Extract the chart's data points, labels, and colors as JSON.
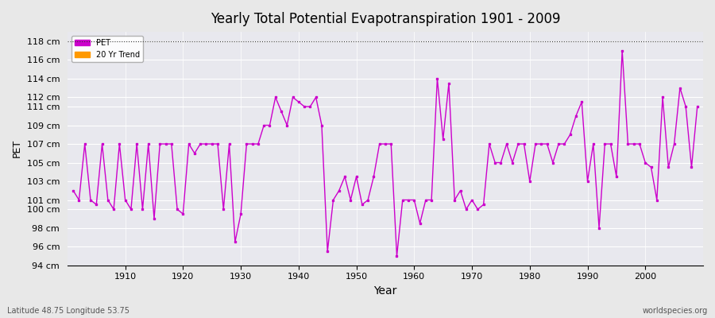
{
  "title": "Yearly Total Potential Evapotranspiration 1901 - 2009",
  "xlabel": "Year",
  "ylabel": "PET",
  "left_label": "Latitude 48.75 Longitude 53.75",
  "right_label": "worldspecies.org",
  "ylim": [
    94,
    119
  ],
  "xlim": [
    1900,
    2010
  ],
  "yticks": [
    94,
    96,
    98,
    100,
    101,
    103,
    105,
    107,
    109,
    111,
    112,
    114,
    116,
    118
  ],
  "ytick_labels": [
    "94 cm",
    "96 cm",
    "98 cm",
    "100 cm",
    "101 cm",
    "103 cm",
    "105 cm",
    "107 cm",
    "109 cm",
    "111 cm",
    "112 cm",
    "114 cm",
    "116 cm",
    "118 cm"
  ],
  "xticks": [
    1910,
    1920,
    1930,
    1940,
    1950,
    1960,
    1970,
    1980,
    1990,
    2000
  ],
  "pet_color": "#cc00cc",
  "trend_color": "#ff9900",
  "bg_color": "#e8e8e8",
  "plot_bg": "#e8e8ee",
  "grid_color": "#ffffff",
  "top_line_color": "#555555",
  "years": [
    1901,
    1902,
    1903,
    1904,
    1905,
    1906,
    1907,
    1908,
    1909,
    1910,
    1911,
    1912,
    1913,
    1914,
    1915,
    1916,
    1917,
    1918,
    1919,
    1920,
    1921,
    1922,
    1923,
    1924,
    1925,
    1926,
    1927,
    1928,
    1929,
    1930,
    1931,
    1932,
    1933,
    1934,
    1935,
    1936,
    1937,
    1938,
    1939,
    1940,
    1941,
    1942,
    1943,
    1944,
    1945,
    1946,
    1947,
    1948,
    1949,
    1950,
    1951,
    1952,
    1953,
    1954,
    1955,
    1956,
    1957,
    1958,
    1959,
    1960,
    1961,
    1962,
    1963,
    1964,
    1965,
    1966,
    1967,
    1968,
    1969,
    1970,
    1971,
    1972,
    1973,
    1974,
    1975,
    1976,
    1977,
    1978,
    1979,
    1980,
    1981,
    1982,
    1983,
    1984,
    1985,
    1986,
    1987,
    1988,
    1989,
    1990,
    1991,
    1992,
    1993,
    1994,
    1995,
    1996,
    1997,
    1998,
    1999,
    2000,
    2001,
    2002,
    2003,
    2004,
    2005,
    2006,
    2007,
    2008,
    2009
  ],
  "pet_values": [
    102,
    101,
    107,
    101,
    100.5,
    107,
    101,
    100,
    107,
    101,
    100,
    107,
    100,
    107,
    99,
    107,
    107,
    107,
    100,
    99.5,
    107,
    106,
    107,
    107,
    107,
    107,
    100,
    107,
    96.5,
    99.5,
    107,
    107,
    107,
    109,
    109,
    112,
    110.5,
    109,
    112,
    111.5,
    111,
    111,
    112,
    109,
    95.5,
    101,
    102,
    103.5,
    101,
    103.5,
    100.5,
    101,
    103.5,
    107,
    107,
    107,
    95,
    101,
    101,
    101,
    98.5,
    101,
    101,
    114,
    107.5,
    113.5,
    101,
    102,
    100,
    101,
    100,
    100.5,
    107,
    105,
    105,
    107,
    105,
    107,
    107,
    103,
    107,
    107,
    107,
    105,
    107,
    107,
    108,
    110,
    111.5,
    103,
    107,
    98,
    107,
    107,
    103.5,
    117,
    107,
    107,
    107,
    105,
    104.5,
    101,
    112,
    104.5,
    107,
    113,
    111,
    104.5,
    111
  ]
}
